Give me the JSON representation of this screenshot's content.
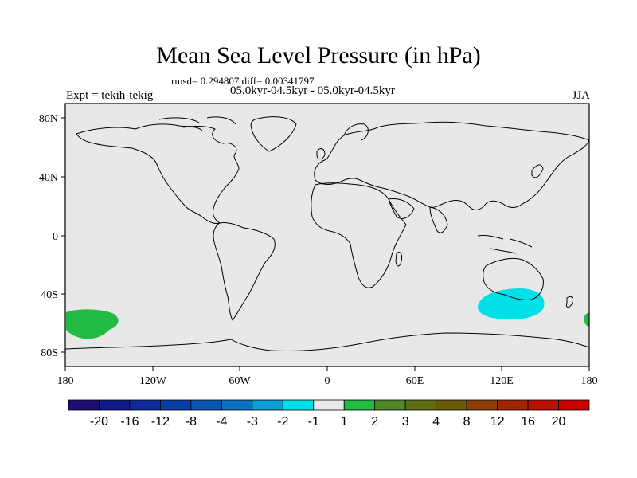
{
  "title": "Mean Sea Level Pressure (in hPa)",
  "stats_line": "rmsd= 0.294807 diff= 0.00341797",
  "period_line": "05.0kyr-04.5kyr - 05.0kyr-04.5kyr",
  "experiment_label": "Expt = tekih-tekig",
  "season": "JJA",
  "lat_labels": [
    "80N",
    "40N",
    "0",
    "40S",
    "80S"
  ],
  "lon_labels": [
    "180",
    "120W",
    "60W",
    "0",
    "60E",
    "120E",
    "180"
  ],
  "colorbar": {
    "labels": [
      "-20",
      "-16",
      "-12",
      "-8",
      "-4",
      "-3",
      "-2",
      "-1",
      "1",
      "2",
      "3",
      "4",
      "8",
      "12",
      "16",
      "20"
    ],
    "colors": [
      "#1b0e6e",
      "#101a88",
      "#0e2a9c",
      "#0c3fa6",
      "#0a56b2",
      "#0a73c4",
      "#0ba0d4",
      "#00e0e6",
      "#e8e8e8",
      "#22bb44",
      "#4e8a2a",
      "#5f6e14",
      "#6a5a0a",
      "#8a3e06",
      "#a22606",
      "#b81204",
      "#cc0000"
    ]
  },
  "anomalies": [
    {
      "label": "green patch",
      "color": "#22bb44"
    },
    {
      "label": "cyan patch",
      "color": "#00e0e6"
    }
  ]
}
